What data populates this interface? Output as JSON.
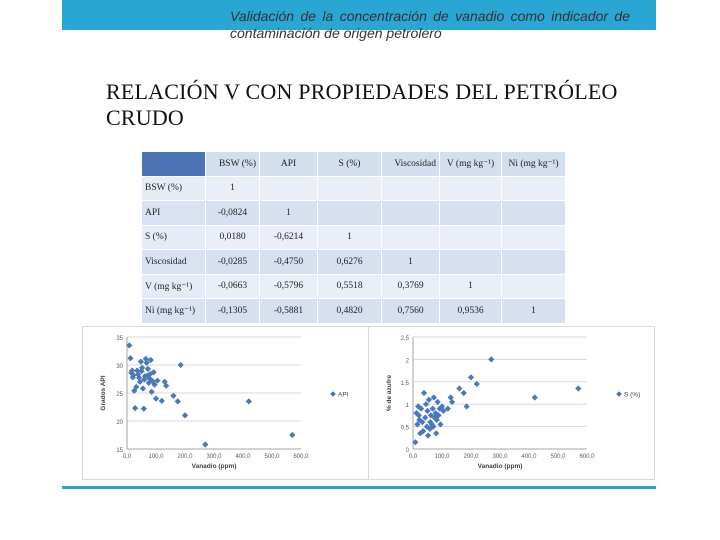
{
  "header": {
    "title": "Validación de la concentración de vanadio como indicador de contaminación de origen petrolero"
  },
  "slide": {
    "title": "RELACIÓN V CON PROPIEDADES DEL PETRÓLEO CRUDO"
  },
  "table": {
    "columns": [
      "BSW (%)",
      "API",
      "S (%)",
      "Viscosidad",
      "V (mg kg⁻¹)",
      "Ni (mg kg⁻¹)"
    ],
    "rows": [
      {
        "label": "BSW (%)",
        "cells": [
          "1",
          "",
          "",
          "",
          "",
          ""
        ]
      },
      {
        "label": "API",
        "cells": [
          "-0,0824",
          "1",
          "",
          "",
          "",
          ""
        ]
      },
      {
        "label": "S (%)",
        "cells": [
          "0,0180",
          "-0,6214",
          "1",
          "",
          "",
          ""
        ]
      },
      {
        "label": "Viscosidad",
        "cells": [
          "-0,0285",
          "-0,4750",
          "0,6276",
          "1",
          "",
          ""
        ]
      },
      {
        "label": "V (mg kg⁻¹)",
        "cells": [
          "-0,0663",
          "-0,5796",
          "0,5518",
          "0,3769",
          "1",
          ""
        ]
      },
      {
        "label": "Ni (mg kg⁻¹)",
        "cells": [
          "-0,1305",
          "-0,5881",
          "0,4820",
          "0,7560",
          "0,9536",
          "1"
        ]
      }
    ]
  },
  "chart_data": [
    {
      "type": "scatter",
      "xlabel": "Vanadio (ppm)",
      "ylabel": "Grados API",
      "legend": "API",
      "legend_position": "right",
      "xlim": [
        0,
        600
      ],
      "ylim": [
        15,
        35
      ],
      "xticks": [
        "0,0",
        "100,0",
        "200,0",
        "300,0",
        "400,0",
        "500,0",
        "600,0"
      ],
      "yticks": [
        "15",
        "20",
        "25",
        "30",
        "35"
      ],
      "grid": true,
      "color": "#4a79b9",
      "points": [
        [
          8,
          33.5
        ],
        [
          12,
          31.2
        ],
        [
          15,
          28.6
        ],
        [
          18,
          29.0
        ],
        [
          20,
          27.8
        ],
        [
          22,
          28.2
        ],
        [
          25,
          25.4
        ],
        [
          28,
          22.3
        ],
        [
          32,
          26.1
        ],
        [
          35,
          29.0
        ],
        [
          38,
          28.3
        ],
        [
          42,
          27.7
        ],
        [
          45,
          27.0
        ],
        [
          48,
          30.6
        ],
        [
          50,
          28.9
        ],
        [
          52,
          29.5
        ],
        [
          55,
          25.8
        ],
        [
          58,
          22.2
        ],
        [
          60,
          27.4
        ],
        [
          62,
          28.0
        ],
        [
          65,
          31.1
        ],
        [
          68,
          30.4
        ],
        [
          70,
          28.1
        ],
        [
          72,
          29.3
        ],
        [
          75,
          26.8
        ],
        [
          78,
          27.6
        ],
        [
          80,
          28.4
        ],
        [
          82,
          30.9
        ],
        [
          85,
          25.2
        ],
        [
          88,
          27.1
        ],
        [
          92,
          28.7
        ],
        [
          95,
          26.5
        ],
        [
          100,
          24.0
        ],
        [
          105,
          27.2
        ],
        [
          120,
          23.6
        ],
        [
          130,
          27.0
        ],
        [
          135,
          26.3
        ],
        [
          160,
          24.5
        ],
        [
          175,
          23.5
        ],
        [
          185,
          30.0
        ],
        [
          200,
          21.0
        ],
        [
          270,
          15.8
        ],
        [
          420,
          23.5
        ],
        [
          570,
          17.5
        ]
      ]
    },
    {
      "type": "scatter",
      "xlabel": "Vanadio (ppm)",
      "ylabel": "% de azufre",
      "legend": "S (%)",
      "legend_position": "right",
      "xlim": [
        0,
        600
      ],
      "ylim": [
        0,
        2.5
      ],
      "xticks": [
        "0,0",
        "100,0",
        "200,0",
        "300,0",
        "400,0",
        "500,0",
        "600,0"
      ],
      "yticks": [
        "0",
        "0,5",
        "1",
        "1,5",
        "2",
        "2,5"
      ],
      "grid": true,
      "color": "#4a79b9",
      "points": [
        [
          8,
          0.15
        ],
        [
          12,
          0.8
        ],
        [
          15,
          0.55
        ],
        [
          18,
          0.95
        ],
        [
          20,
          0.75
        ],
        [
          22,
          0.65
        ],
        [
          25,
          0.35
        ],
        [
          28,
          0.9
        ],
        [
          32,
          0.6
        ],
        [
          35,
          0.4
        ],
        [
          38,
          1.25
        ],
        [
          42,
          0.7
        ],
        [
          45,
          1.0
        ],
        [
          48,
          0.5
        ],
        [
          50,
          0.85
        ],
        [
          52,
          0.3
        ],
        [
          55,
          1.1
        ],
        [
          58,
          0.45
        ],
        [
          60,
          0.6
        ],
        [
          62,
          0.75
        ],
        [
          65,
          0.55
        ],
        [
          68,
          0.9
        ],
        [
          70,
          0.5
        ],
        [
          72,
          1.15
        ],
        [
          75,
          0.7
        ],
        [
          78,
          0.8
        ],
        [
          80,
          0.35
        ],
        [
          82,
          0.65
        ],
        [
          85,
          1.05
        ],
        [
          88,
          0.75
        ],
        [
          92,
          0.9
        ],
        [
          95,
          0.55
        ],
        [
          100,
          0.95
        ],
        [
          105,
          0.85
        ],
        [
          120,
          0.9
        ],
        [
          130,
          1.15
        ],
        [
          135,
          1.05
        ],
        [
          160,
          1.35
        ],
        [
          175,
          1.25
        ],
        [
          185,
          0.95
        ],
        [
          200,
          1.6
        ],
        [
          220,
          1.45
        ],
        [
          270,
          2.0
        ],
        [
          420,
          1.15
        ],
        [
          570,
          1.35
        ]
      ]
    }
  ]
}
